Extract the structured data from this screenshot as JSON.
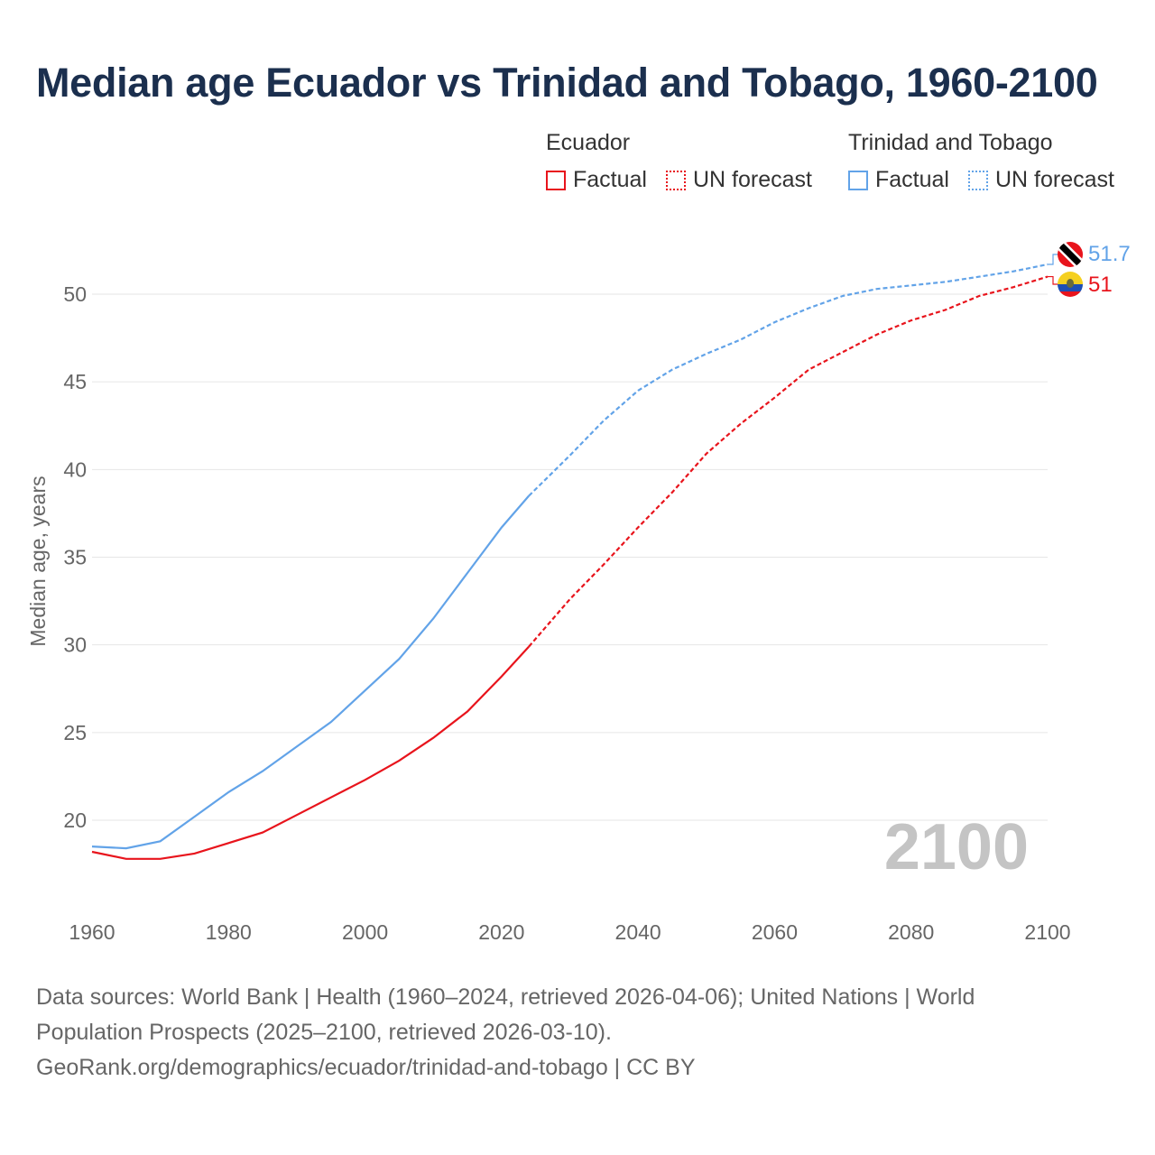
{
  "title": "Median age Ecuador vs Trinidad and Tobago, 1960-2100",
  "legend": {
    "groups": [
      {
        "name": "Ecuador",
        "items": [
          "Factual",
          "UN forecast"
        ],
        "color": "#e8141c"
      },
      {
        "name": "Trinidad and Tobago",
        "items": [
          "Factual",
          "UN forecast"
        ],
        "color": "#62a3e8"
      }
    ]
  },
  "year_watermark": "2100",
  "end_labels": {
    "trinidad": "51.7",
    "ecuador": "51"
  },
  "footer": {
    "line1": "Data sources: World Bank | Health (1960–2024, retrieved 2026-04-06); United Nations | World",
    "line2": "Population Prospects (2025–2100, retrieved 2026-03-10).",
    "line3": "GeoRank.org/demographics/ecuador/trinidad-and-tobago | CC BY"
  },
  "chart_data": {
    "type": "line",
    "title": "Median age Ecuador vs Trinidad and Tobago, 1960-2100",
    "xlabel": "",
    "ylabel": "Median age, years",
    "xlim": [
      1960,
      2100
    ],
    "ylim": [
      15,
      52
    ],
    "xticks": [
      1960,
      1980,
      2000,
      2020,
      2040,
      2060,
      2080,
      2100
    ],
    "yticks": [
      20,
      25,
      30,
      35,
      40,
      45,
      50
    ],
    "forecast_start": 2024,
    "x": [
      1960,
      1965,
      1970,
      1975,
      1980,
      1985,
      1990,
      1995,
      2000,
      2005,
      2010,
      2015,
      2020,
      2024,
      2030,
      2035,
      2040,
      2045,
      2050,
      2055,
      2060,
      2065,
      2070,
      2075,
      2080,
      2085,
      2090,
      2095,
      2100
    ],
    "series": [
      {
        "name": "Ecuador",
        "color": "#e8141c",
        "values": [
          18.2,
          17.8,
          17.8,
          18.1,
          18.7,
          19.3,
          20.3,
          21.3,
          22.3,
          23.4,
          24.7,
          26.2,
          28.2,
          29.9,
          32.6,
          34.6,
          36.7,
          38.7,
          40.9,
          42.6,
          44.1,
          45.7,
          46.7,
          47.7,
          48.5,
          49.1,
          49.9,
          50.4,
          51.0
        ]
      },
      {
        "name": "Trinidad and Tobago",
        "color": "#62a3e8",
        "values": [
          18.5,
          18.4,
          18.8,
          20.2,
          21.6,
          22.8,
          24.2,
          25.6,
          27.4,
          29.2,
          31.5,
          34.1,
          36.7,
          38.5,
          40.8,
          42.8,
          44.5,
          45.7,
          46.6,
          47.4,
          48.4,
          49.2,
          49.9,
          50.3,
          50.5,
          50.7,
          51.0,
          51.3,
          51.7
        ]
      }
    ]
  }
}
